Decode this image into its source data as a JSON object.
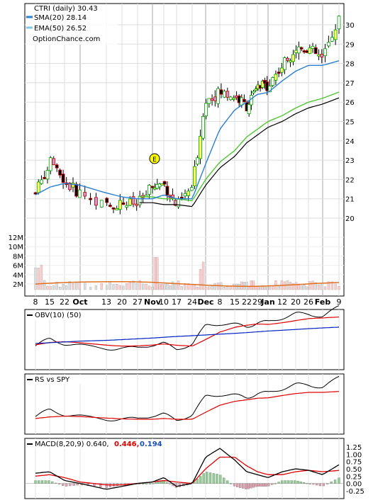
{
  "main": {
    "title": "CTRI (daily) 30.43",
    "legend": [
      {
        "label": "SMA(20) 28.14",
        "color": "#2a7fd4"
      },
      {
        "label": "EMA(50) 26.52",
        "color": "#7fc8e6"
      }
    ],
    "source": "OptionChance.com",
    "price_ticks": [
      "30",
      "29",
      "28",
      "27",
      "26",
      "25",
      "24",
      "23",
      "22",
      "21",
      "20"
    ],
    "volume_ticks": [
      "12M",
      "10M",
      "8M",
      "6M",
      "4M",
      "2M"
    ],
    "date_ticks": [
      "8",
      "15",
      "22",
      "Oct",
      "13",
      "20",
      "27",
      "Nov",
      "10",
      "17",
      "24",
      "Dec",
      "8",
      "15",
      "22",
      "29",
      "Jan",
      "12",
      "20",
      "26",
      "Feb",
      "9"
    ],
    "event_marker": "E"
  },
  "obv": {
    "label": "OBV(10) (50)"
  },
  "rs": {
    "label": "RS vs SPY"
  },
  "macd": {
    "label": "MACD(8,20,9) 0.640,",
    "val1": "0.446,",
    "val2": "0.194",
    "val1_color": "#e00000",
    "val2_color": "#1a4fc0",
    "ticks": [
      "1.25",
      "1.00",
      "0.75",
      "0.50",
      "0.25",
      "0.00",
      "-0.25"
    ]
  },
  "chart_data": [
    {
      "type": "line",
      "title": "CTRI (daily) 30.43",
      "y_axis": "price",
      "ylim": [
        19.5,
        30.7
      ],
      "x": [
        "8",
        "15",
        "22",
        "Oct",
        "13",
        "20",
        "27",
        "Nov",
        "10",
        "17",
        "24",
        "Dec",
        "8",
        "15",
        "22",
        "29",
        "Jan",
        "12",
        "20",
        "26",
        "Feb",
        "9"
      ],
      "series": [
        {
          "name": "CTRI",
          "values": [
            21.3,
            22.9,
            21.8,
            21.3,
            20.6,
            20.8,
            20.7,
            21.6,
            21.8,
            20.6,
            21.6,
            26.1,
            26.5,
            26.3,
            25.8,
            26.7,
            26.9,
            27.9,
            28.8,
            28.8,
            28.2,
            30.43
          ]
        },
        {
          "name": "SMA(20) 28.14",
          "values": [
            21.2,
            21.6,
            21.8,
            21.7,
            21.3,
            21.1,
            21.0,
            21.0,
            21.2,
            21.0,
            21.0,
            22.8,
            24.6,
            25.6,
            26.0,
            26.4,
            26.5,
            27.1,
            27.6,
            27.9,
            27.9,
            28.14
          ]
        },
        {
          "name": "EMA(50) 26.52",
          "values": [
            null,
            null,
            null,
            null,
            null,
            null,
            null,
            21.1,
            21.0,
            21.0,
            20.9,
            22.0,
            22.9,
            23.5,
            24.2,
            24.6,
            25.0,
            25.3,
            25.7,
            26.0,
            26.2,
            26.52
          ]
        }
      ],
      "volume_ylim": [
        0,
        12
      ],
      "volume_unit": "M"
    },
    {
      "type": "line",
      "title": "OBV(10) (50)"
    },
    {
      "type": "line",
      "title": "RS vs SPY"
    },
    {
      "type": "bar",
      "title": "MACD(8,20,9) 0.640,",
      "ylim": [
        -0.25,
        1.25
      ],
      "series": [
        {
          "name": "MACD",
          "values": [
            0.35,
            0.4,
            0.1,
            0.0,
            -0.2,
            -0.1,
            0.0,
            0.05,
            0.2,
            -0.1,
            0.0,
            0.9,
            1.2,
            0.8,
            0.4,
            0.3,
            0.2,
            0.4,
            0.5,
            0.45,
            0.3,
            0.64
          ]
        },
        {
          "name": "0.446,",
          "values": [
            0.25,
            0.3,
            0.2,
            0.05,
            -0.05,
            -0.05,
            0.0,
            0.05,
            0.1,
            0.05,
            0.0,
            0.5,
            0.9,
            0.9,
            0.6,
            0.4,
            0.3,
            0.3,
            0.4,
            0.45,
            0.4,
            0.446
          ]
        },
        {
          "name": "0.194",
          "values": [
            0.1,
            0.1,
            -0.1,
            -0.05,
            -0.15,
            -0.05,
            0.0,
            0.0,
            0.1,
            -0.15,
            0.0,
            0.4,
            0.3,
            -0.1,
            -0.2,
            -0.1,
            -0.1,
            0.1,
            0.1,
            0.0,
            -0.1,
            0.194
          ]
        }
      ]
    }
  ]
}
